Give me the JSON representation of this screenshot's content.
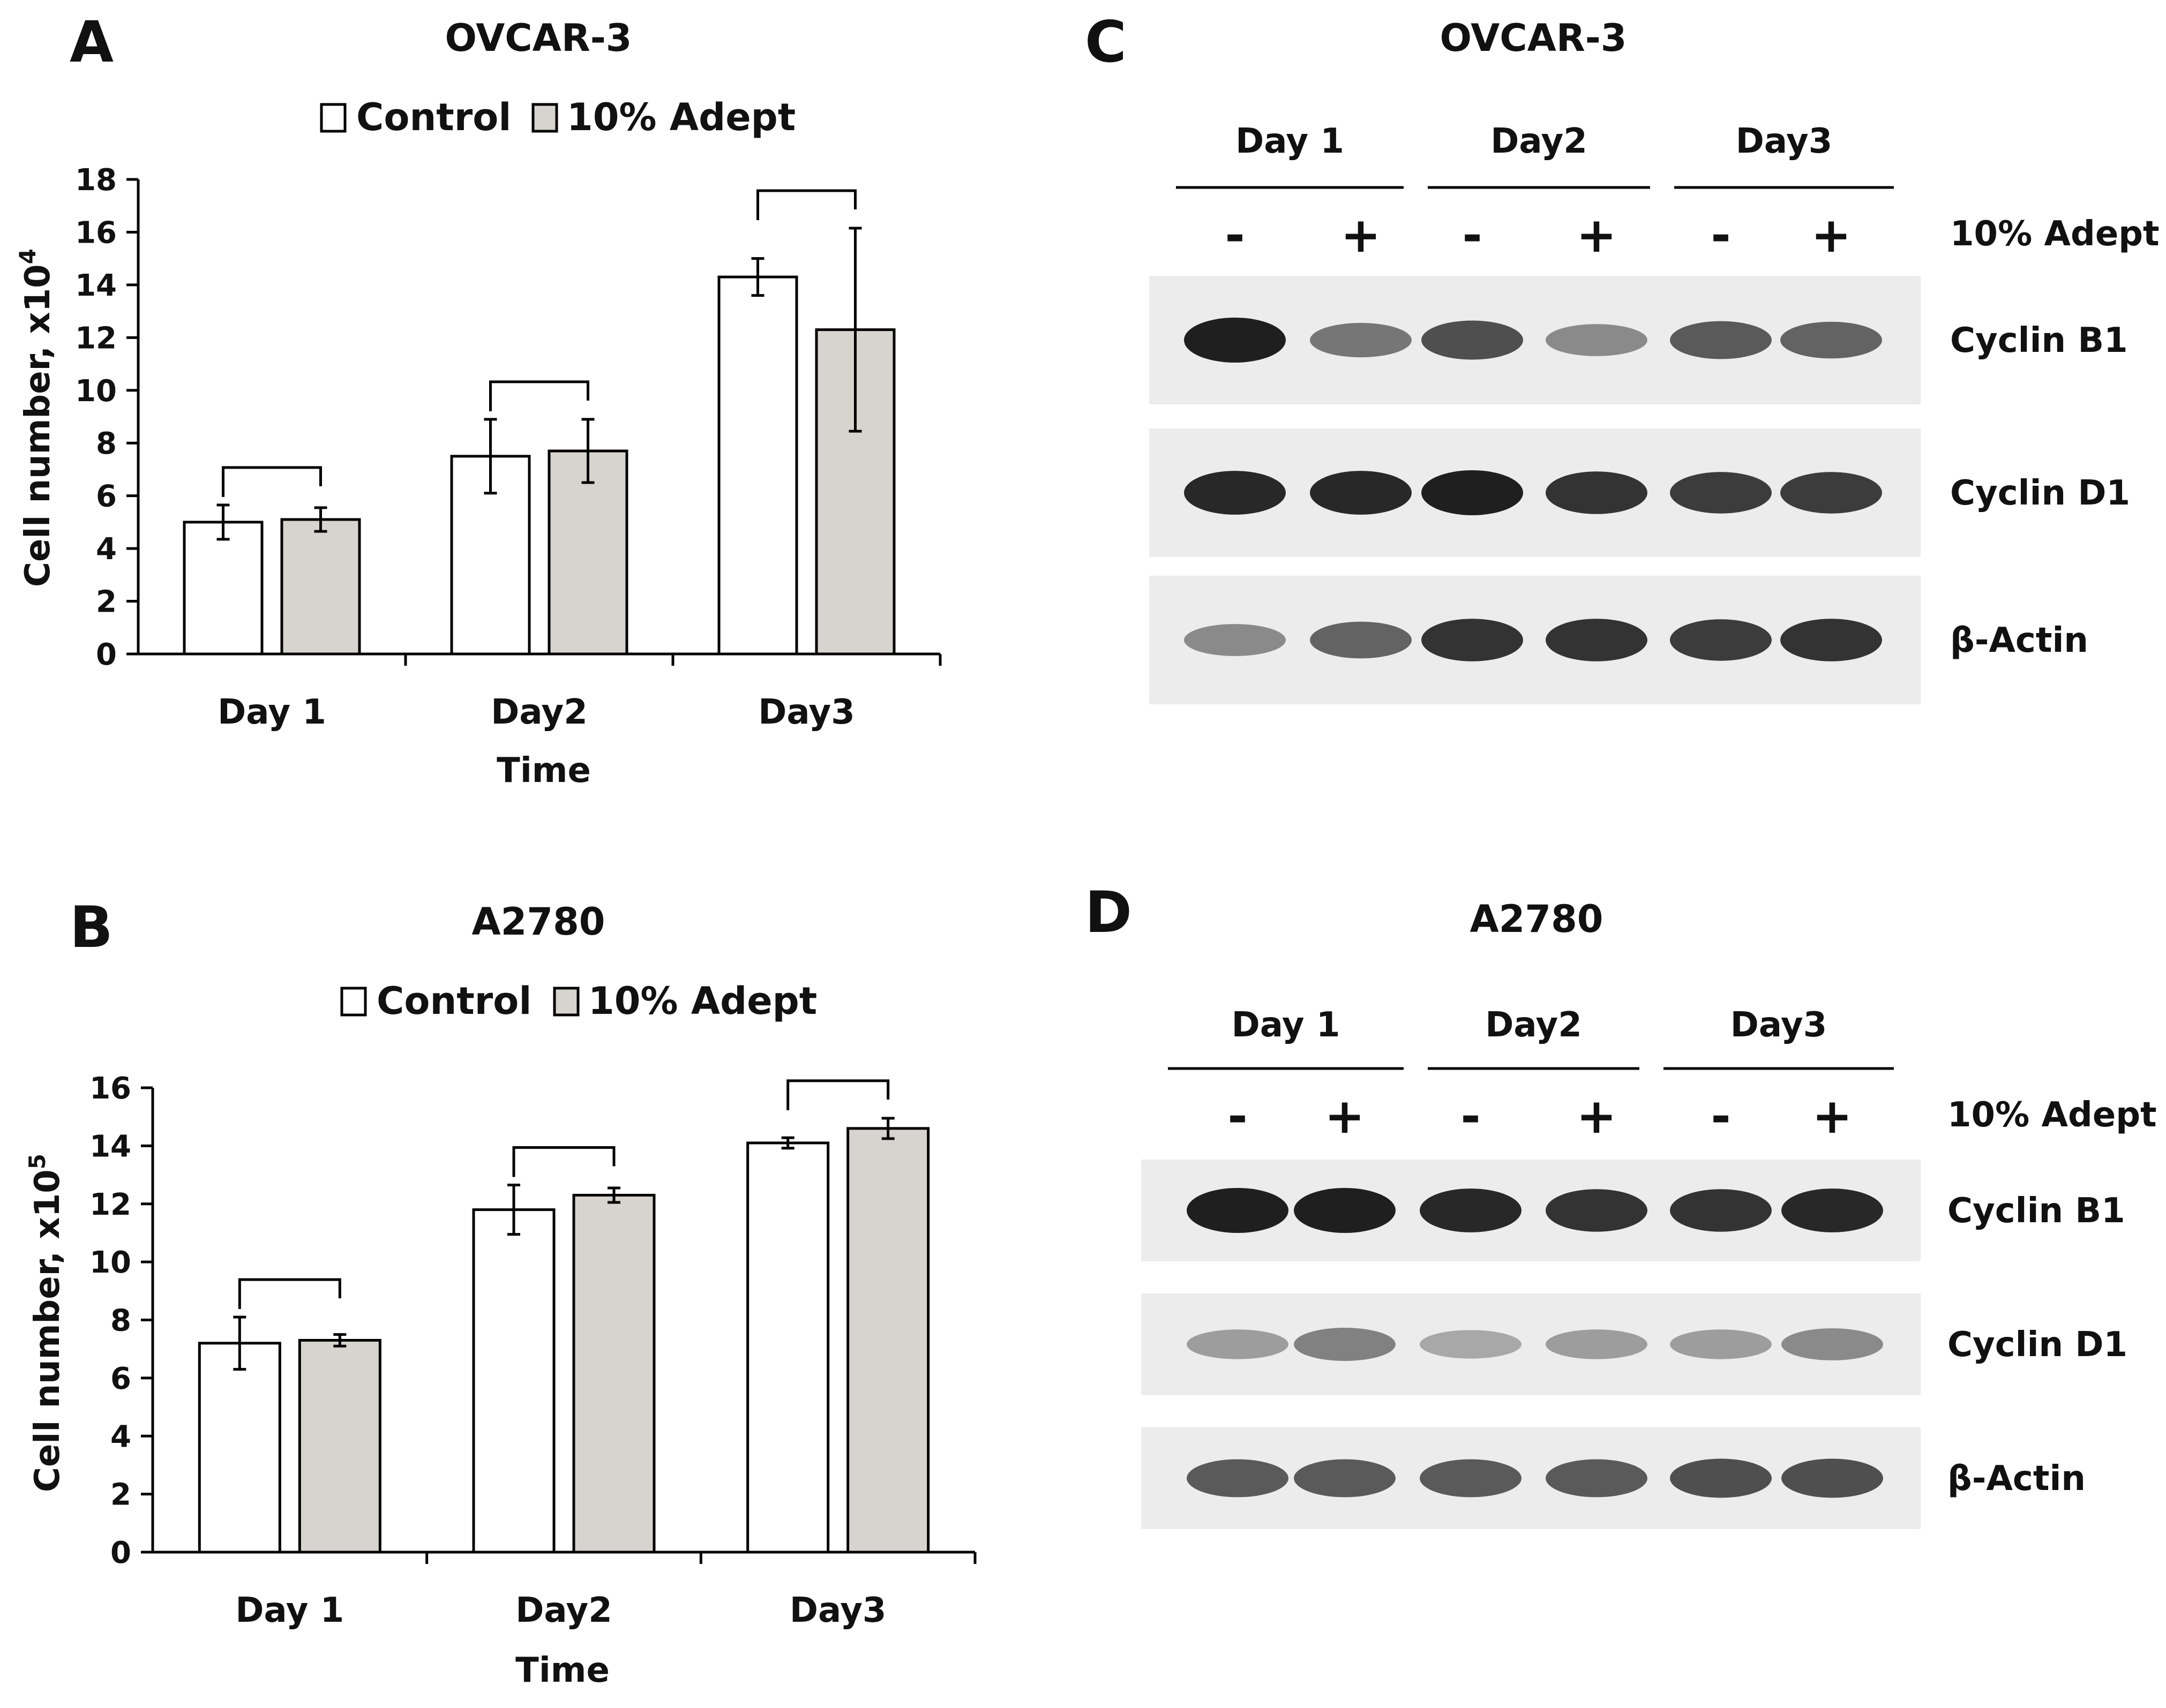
{
  "colors": {
    "control": "#ffffff",
    "adept": "#d7d4cf",
    "stroke": "#000000"
  },
  "panels": {
    "A": {
      "letter": "A",
      "title": "OVCAR-3"
    },
    "B": {
      "letter": "B",
      "title": "A2780"
    },
    "C": {
      "letter": "C",
      "title": "OVCAR-3"
    },
    "D": {
      "letter": "D",
      "title": "A2780"
    }
  },
  "chart_data": [
    {
      "type": "bar",
      "panel": "A",
      "title": "OVCAR-3",
      "xlabel": "Time",
      "ylabel": "Cell number, x10",
      "ylabel_exponent": "4",
      "categories": [
        "Day 1",
        "Day2",
        "Day3"
      ],
      "ylim": [
        0,
        18
      ],
      "yticks": [
        0,
        2,
        4,
        6,
        8,
        10,
        12,
        14,
        16,
        18
      ],
      "legend": "top-center",
      "grid": false,
      "series": [
        {
          "name": "Control",
          "values": [
            5.0,
            7.5,
            14.3
          ],
          "errors": [
            0.65,
            1.4,
            0.7
          ]
        },
        {
          "name": "10% Adept",
          "values": [
            5.1,
            7.7,
            12.3
          ],
          "errors": [
            0.45,
            1.2,
            3.85
          ]
        }
      ]
    },
    {
      "type": "bar",
      "panel": "B",
      "title": "A2780",
      "xlabel": "Time",
      "ylabel": "Cell number, x10",
      "ylabel_exponent": "5",
      "categories": [
        "Day 1",
        "Day2",
        "Day3"
      ],
      "ylim": [
        0,
        16
      ],
      "yticks": [
        0,
        2,
        4,
        6,
        8,
        10,
        12,
        14,
        16
      ],
      "legend": "top-center",
      "grid": false,
      "series": [
        {
          "name": "Control",
          "values": [
            7.2,
            11.8,
            14.1
          ],
          "errors": [
            0.9,
            0.85,
            0.18
          ]
        },
        {
          "name": "10% Adept",
          "values": [
            7.3,
            12.3,
            14.6
          ],
          "errors": [
            0.2,
            0.25,
            0.35
          ]
        }
      ]
    }
  ],
  "blots": [
    {
      "panel": "C",
      "title": "OVCAR-3",
      "groups": [
        "Day 1",
        "Day2",
        "Day3"
      ],
      "lane_signs": [
        "-",
        "+",
        "-",
        "+",
        "-",
        "+"
      ],
      "treatment_label": "10% Adept",
      "rows": [
        {
          "label": "Cyclin B1",
          "intensities": [
            1.0,
            0.55,
            0.75,
            0.45,
            0.7,
            0.65
          ]
        },
        {
          "label": "Cyclin D1",
          "intensities": [
            0.95,
            0.95,
            1.0,
            0.9,
            0.85,
            0.85
          ]
        },
        {
          "label": "β-Actin",
          "intensities": [
            0.45,
            0.65,
            0.9,
            0.9,
            0.85,
            0.9
          ]
        }
      ]
    },
    {
      "panel": "D",
      "title": "A2780",
      "groups": [
        "Day 1",
        "Day2",
        "Day3"
      ],
      "lane_signs": [
        "-",
        "+",
        "-",
        "+",
        "-",
        "+"
      ],
      "treatment_label": "10% Adept",
      "rows": [
        {
          "label": "Cyclin B1",
          "intensities": [
            1.0,
            1.0,
            0.95,
            0.9,
            0.9,
            0.95
          ]
        },
        {
          "label": "Cyclin D1",
          "intensities": [
            0.35,
            0.5,
            0.3,
            0.35,
            0.35,
            0.45
          ]
        },
        {
          "label": "β-Actin",
          "intensities": [
            0.7,
            0.7,
            0.7,
            0.7,
            0.75,
            0.75
          ]
        }
      ]
    }
  ]
}
